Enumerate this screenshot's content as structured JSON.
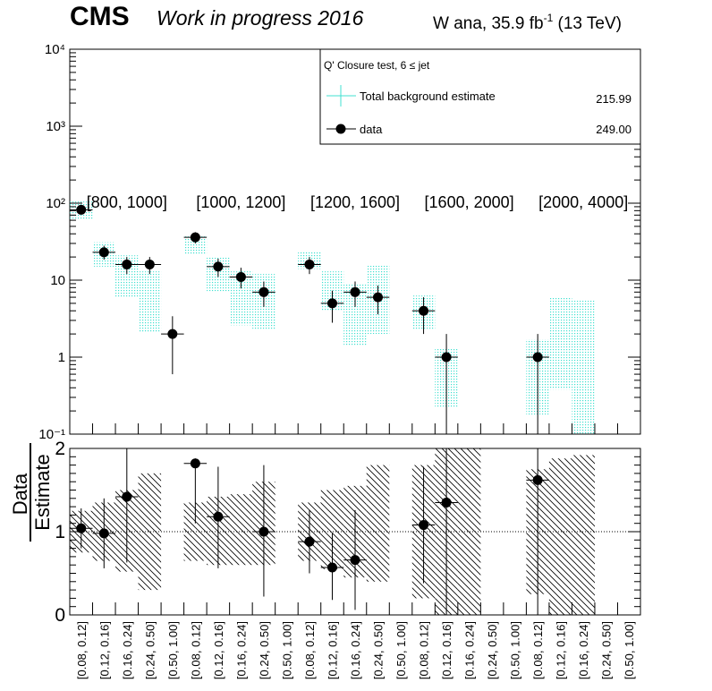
{
  "header": {
    "cms": "CMS",
    "wip": "Work in progress 2016",
    "lumi_prefix": "W ana, 35.9 fb",
    "lumi_sup": "-1",
    "lumi_suffix": " (13 TeV)"
  },
  "legend": {
    "title": "Q' Closure test, 6 ≤ jet",
    "entries": [
      {
        "label": "Total background estimate",
        "value": "215.99",
        "color": "#40e0d0"
      },
      {
        "label": "data",
        "value": "249.00",
        "color": "#000000"
      }
    ]
  },
  "chart_data": [
    {
      "type": "bar",
      "scale": "log",
      "ylim": [
        0.1,
        10000
      ],
      "y_ticks": [
        "10⁻¹",
        "1",
        "10",
        "10²",
        "10³",
        "10⁴"
      ],
      "groups": [
        "[800, 1000]",
        "[1000, 1200]",
        "[1200, 1600]",
        "[1600, 2000]",
        "[2000, 4000]"
      ],
      "categories": [
        "[0.08, 0.12]",
        "[0.12, 0.16]",
        "[0.16, 0.24]",
        "[0.24, 0.50]",
        "[0.50, 1.00]",
        "[0.08, 0.12]",
        "[0.12, 0.16]",
        "[0.16, 0.24]",
        "[0.24, 0.50]",
        "[0.50, 1.00]",
        "[0.08, 0.12]",
        "[0.12, 0.16]",
        "[0.16, 0.24]",
        "[0.24, 0.50]",
        "[0.50, 1.00]",
        "[0.08, 0.12]",
        "[0.12, 0.16]",
        "[0.16, 0.24]",
        "[0.24, 0.50]",
        "[0.50, 1.00]",
        "[0.08, 0.12]",
        "[0.12, 0.16]",
        "[0.16, 0.24]",
        "[0.24, 0.50]",
        "[0.50, 1.00]"
      ],
      "series": [
        {
          "name": "Total background estimate",
          "band_low": [
            62,
            15,
            6,
            2.1,
            null,
            22,
            7.2,
            2.6,
            2.3,
            null,
            14,
            4,
            1.4,
            2,
            null,
            2.3,
            0.22,
            null,
            null,
            null,
            0.18,
            0.38,
            0.1,
            null,
            null
          ],
          "band_high": [
            105,
            31,
            21,
            13,
            null,
            37,
            20,
            13,
            12,
            null,
            23,
            13,
            9,
            16,
            null,
            6.3,
            1.3,
            null,
            null,
            null,
            1.7,
            6,
            5.5,
            null,
            null
          ]
        },
        {
          "name": "data",
          "values": [
            82,
            23,
            16,
            16,
            2,
            36,
            15,
            11,
            7,
            null,
            16,
            5,
            7,
            6,
            null,
            4,
            1,
            null,
            null,
            null,
            1,
            null,
            null,
            null,
            null
          ],
          "err_low": [
            73,
            18.5,
            12,
            12,
            0.6,
            30,
            11,
            7.8,
            4.5,
            null,
            12,
            2.8,
            4.5,
            3.6,
            null,
            2,
            0.1,
            null,
            null,
            null,
            0.1,
            null,
            null,
            null,
            null
          ],
          "err_high": [
            92,
            28,
            20,
            20,
            3.4,
            42,
            19,
            14.5,
            9.6,
            null,
            20,
            7.3,
            9.6,
            8.5,
            null,
            6,
            2,
            null,
            null,
            null,
            2,
            null,
            null,
            null,
            null
          ]
        }
      ]
    },
    {
      "type": "bar",
      "ylabel": "Data / Estimate",
      "ylabel_num": "Data",
      "ylabel_den": "Estimate",
      "ylim": [
        0,
        2
      ],
      "y_ticks": [
        "0",
        "1",
        "2"
      ],
      "series": [
        {
          "name": "ratio band",
          "band_low": [
            0.75,
            0.65,
            0.52,
            0.3,
            null,
            0.65,
            0.6,
            0.6,
            0.6,
            null,
            0.65,
            0.55,
            0.45,
            0.4,
            null,
            0.2,
            0.0,
            0.0,
            null,
            null,
            0.25,
            0.0,
            0.0,
            null,
            null
          ],
          "band_high": [
            1.25,
            1.35,
            1.5,
            1.7,
            null,
            1.35,
            1.42,
            1.45,
            1.6,
            null,
            1.35,
            1.5,
            1.55,
            1.8,
            null,
            1.8,
            2.0,
            2.0,
            null,
            null,
            1.75,
            1.88,
            1.92,
            null,
            null
          ]
        },
        {
          "name": "ratio",
          "values": [
            1.04,
            0.98,
            1.42,
            null,
            null,
            1.82,
            1.18,
            null,
            1.0,
            null,
            0.88,
            0.57,
            0.66,
            null,
            null,
            1.08,
            1.35,
            null,
            null,
            null,
            1.62,
            null,
            null,
            null,
            null
          ],
          "err_low": [
            0.8,
            0.56,
            0.63,
            null,
            null,
            1.1,
            0.56,
            null,
            0.22,
            null,
            0.5,
            0.18,
            0.06,
            null,
            null,
            0.38,
            0.0,
            null,
            null,
            null,
            0.0,
            null,
            null,
            null,
            null
          ],
          "err_high": [
            1.28,
            1.4,
            2.0,
            null,
            null,
            1.88,
            1.78,
            null,
            1.8,
            null,
            1.26,
            0.98,
            1.26,
            null,
            null,
            1.78,
            2.0,
            null,
            null,
            null,
            2.0,
            null,
            null,
            null,
            null
          ]
        }
      ]
    }
  ]
}
